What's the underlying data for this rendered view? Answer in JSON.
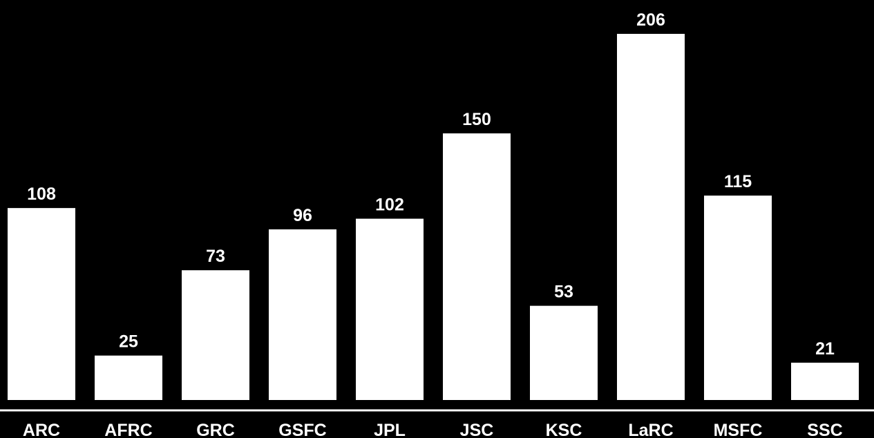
{
  "chart_data": {
    "type": "bar",
    "title": "",
    "xlabel": "",
    "ylabel": "",
    "categories": [
      "ARC",
      "AFRC",
      "GRC",
      "GSFC",
      "JPL",
      "JSC",
      "KSC",
      "LaRC",
      "MSFC",
      "SSC"
    ],
    "values": [
      108,
      25,
      73,
      96,
      102,
      150,
      53,
      206,
      115,
      21
    ],
    "value_labels": [
      "108",
      "25",
      "73",
      "96",
      "102",
      "150",
      "53",
      "206",
      "115",
      "21"
    ],
    "ylim": [
      0,
      206
    ],
    "grid": false,
    "legend": "none",
    "colors": {
      "background": "#000000",
      "bar": "#ffffff",
      "text": "#ffffff",
      "axis": "#ffffff"
    }
  }
}
